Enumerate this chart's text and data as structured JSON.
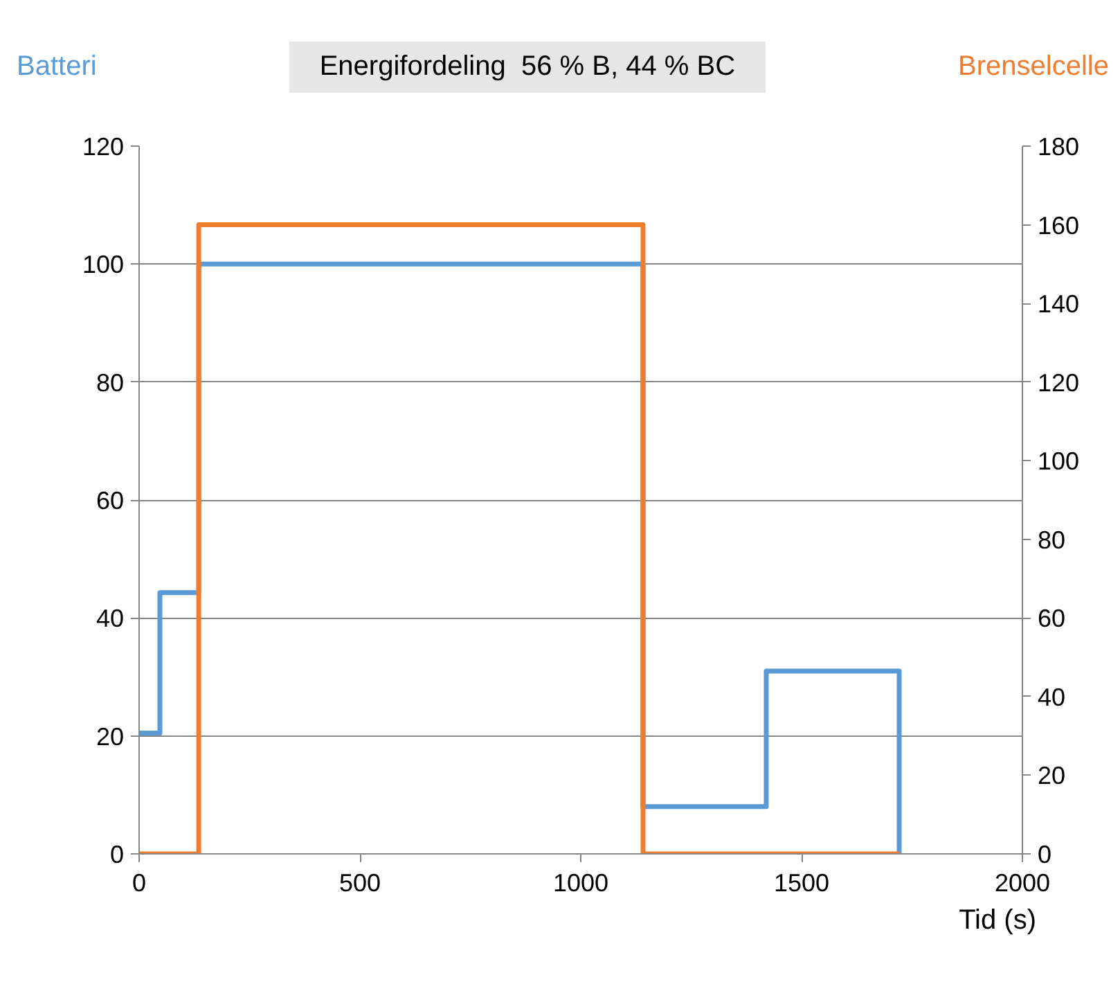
{
  "chart_data": {
    "type": "step",
    "annotations": [
      "Energifordeling  56 % B, 44 % BC"
    ],
    "xlabel": "Tid (s)",
    "ylabel": "Batteri",
    "y2label": "Brenselcelle",
    "series": [
      {
        "color": "#5b9bd5",
        "x": [
          0,
          47,
          135,
          1141,
          1420,
          1721
        ],
        "values": [
          20.5,
          44.3,
          100,
          8,
          31,
          0
        ]
      },
      {
        "color": "#ed7d31",
        "axis": "y2",
        "x": [
          0,
          135,
          1141,
          1721
        ],
        "values": [
          0,
          160,
          0,
          0
        ]
      }
    ],
    "xlim": [
      0,
      2000
    ],
    "xticks": [
      0,
      500,
      1000,
      1500,
      2000
    ],
    "ylim": [
      0,
      120
    ],
    "yticks": [
      0,
      20,
      40,
      60,
      80,
      100,
      120
    ],
    "y2lim": [
      0,
      180
    ],
    "y2ticks": [
      0,
      20,
      40,
      60,
      80,
      100,
      120,
      140,
      160,
      180
    ],
    "grid": "y",
    "line_style": "solid",
    "marker": "none"
  }
}
